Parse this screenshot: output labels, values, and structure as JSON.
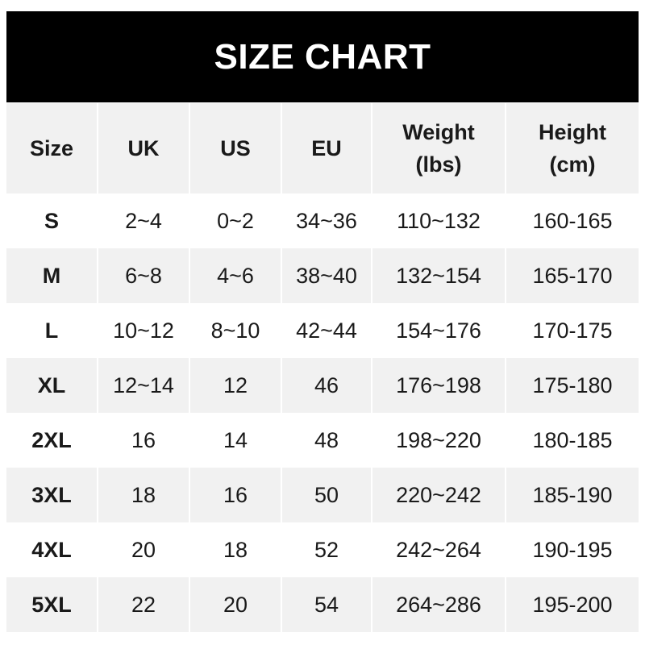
{
  "title": "SIZE CHART",
  "headers": [
    "Size",
    "UK",
    "US",
    "EU",
    "Weight\n(lbs)",
    "Height\n(cm)"
  ],
  "header_lines": [
    [
      "Size"
    ],
    [
      "UK"
    ],
    [
      "US"
    ],
    [
      "EU"
    ],
    [
      "Weight",
      "(lbs)"
    ],
    [
      "Height",
      "(cm)"
    ]
  ],
  "rows": [
    [
      "S",
      "2~4",
      "0~2",
      "34~36",
      "110~132",
      "160-165"
    ],
    [
      "M",
      "6~8",
      "4~6",
      "38~40",
      "132~154",
      "165-170"
    ],
    [
      "L",
      "10~12",
      "8~10",
      "42~44",
      "154~176",
      "170-175"
    ],
    [
      "XL",
      "12~14",
      "12",
      "46",
      "176~198",
      "175-180"
    ],
    [
      "2XL",
      "16",
      "14",
      "48",
      "198~220",
      "180-185"
    ],
    [
      "3XL",
      "18",
      "16",
      "50",
      "220~242",
      "185-190"
    ],
    [
      "4XL",
      "20",
      "18",
      "52",
      "242~264",
      "190-195"
    ],
    [
      "5XL",
      "22",
      "20",
      "54",
      "264~286",
      "195-200"
    ]
  ],
  "colors": {
    "title_bg": "#000000",
    "stripe": "#f1f1f1"
  }
}
